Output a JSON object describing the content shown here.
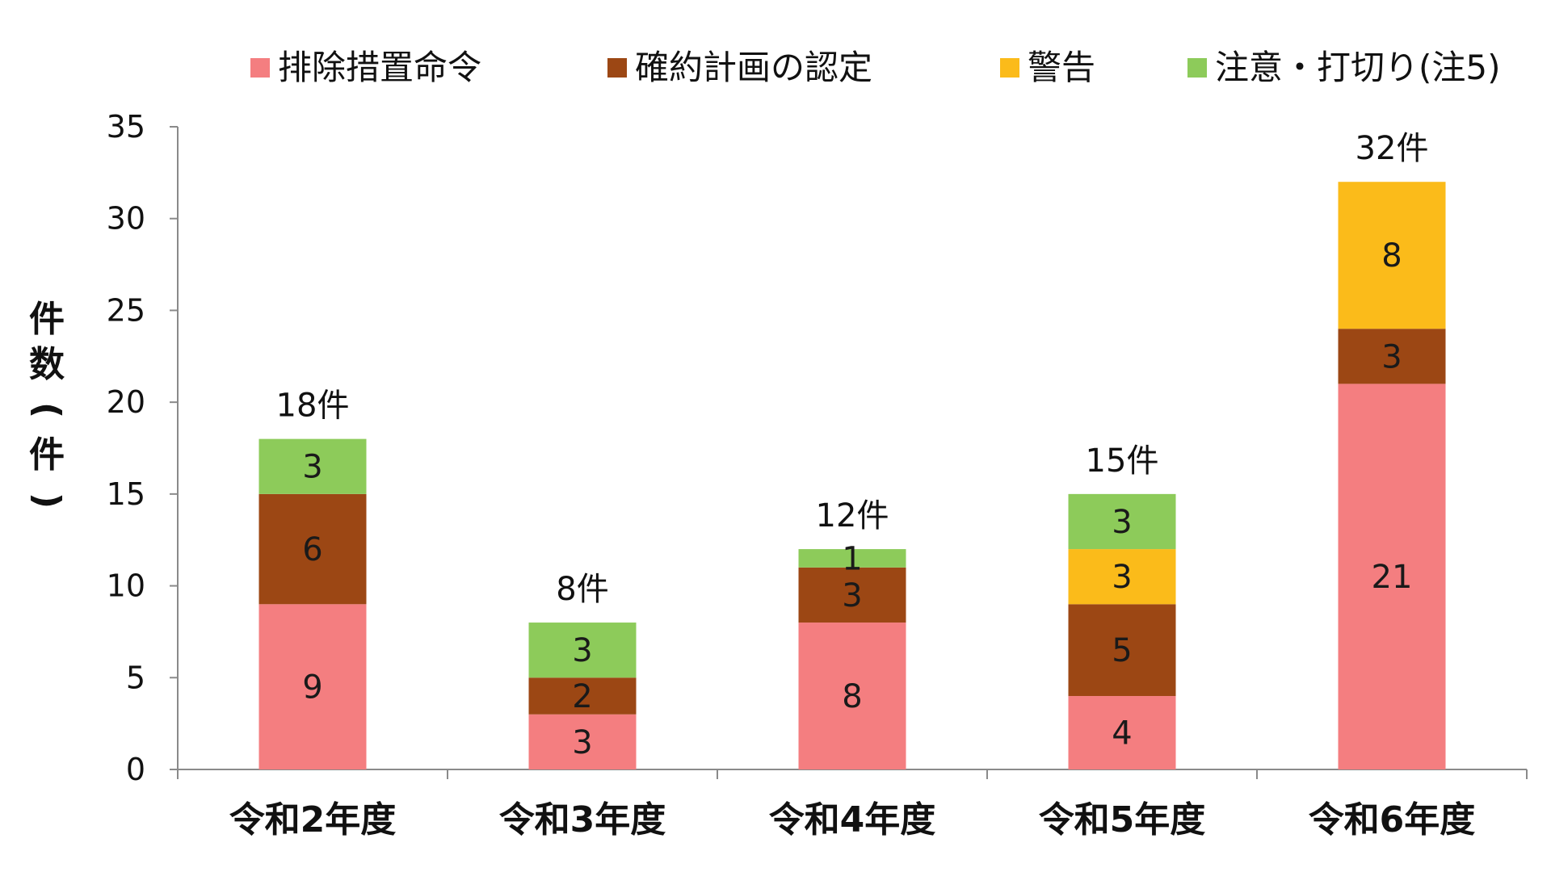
{
  "chart_data": {
    "type": "bar",
    "stacked": true,
    "categories": [
      "令和2年度",
      "令和3年度",
      "令和4年度",
      "令和5年度",
      "令和6年度"
    ],
    "series": [
      {
        "name": "排除措置命令",
        "color": "#f47e80",
        "values": [
          9,
          3,
          8,
          4,
          21
        ]
      },
      {
        "name": "確約計画の認定",
        "color": "#9c4714",
        "values": [
          6,
          2,
          3,
          5,
          3
        ]
      },
      {
        "name": "警告",
        "color": "#fbbb1a",
        "values": [
          0,
          0,
          0,
          3,
          8
        ]
      },
      {
        "name": "注意・打切り(注5)",
        "color": "#8dcb5a",
        "values": [
          3,
          3,
          1,
          3,
          0
        ]
      }
    ],
    "totals": [
      "18件",
      "8件",
      "12件",
      "15件",
      "32件"
    ],
    "ylabel": "件数(件)",
    "ylim": [
      0,
      35
    ],
    "yticks": [
      0,
      5,
      10,
      15,
      20,
      25,
      30,
      35
    ],
    "legend_position": "top",
    "grid": false
  }
}
